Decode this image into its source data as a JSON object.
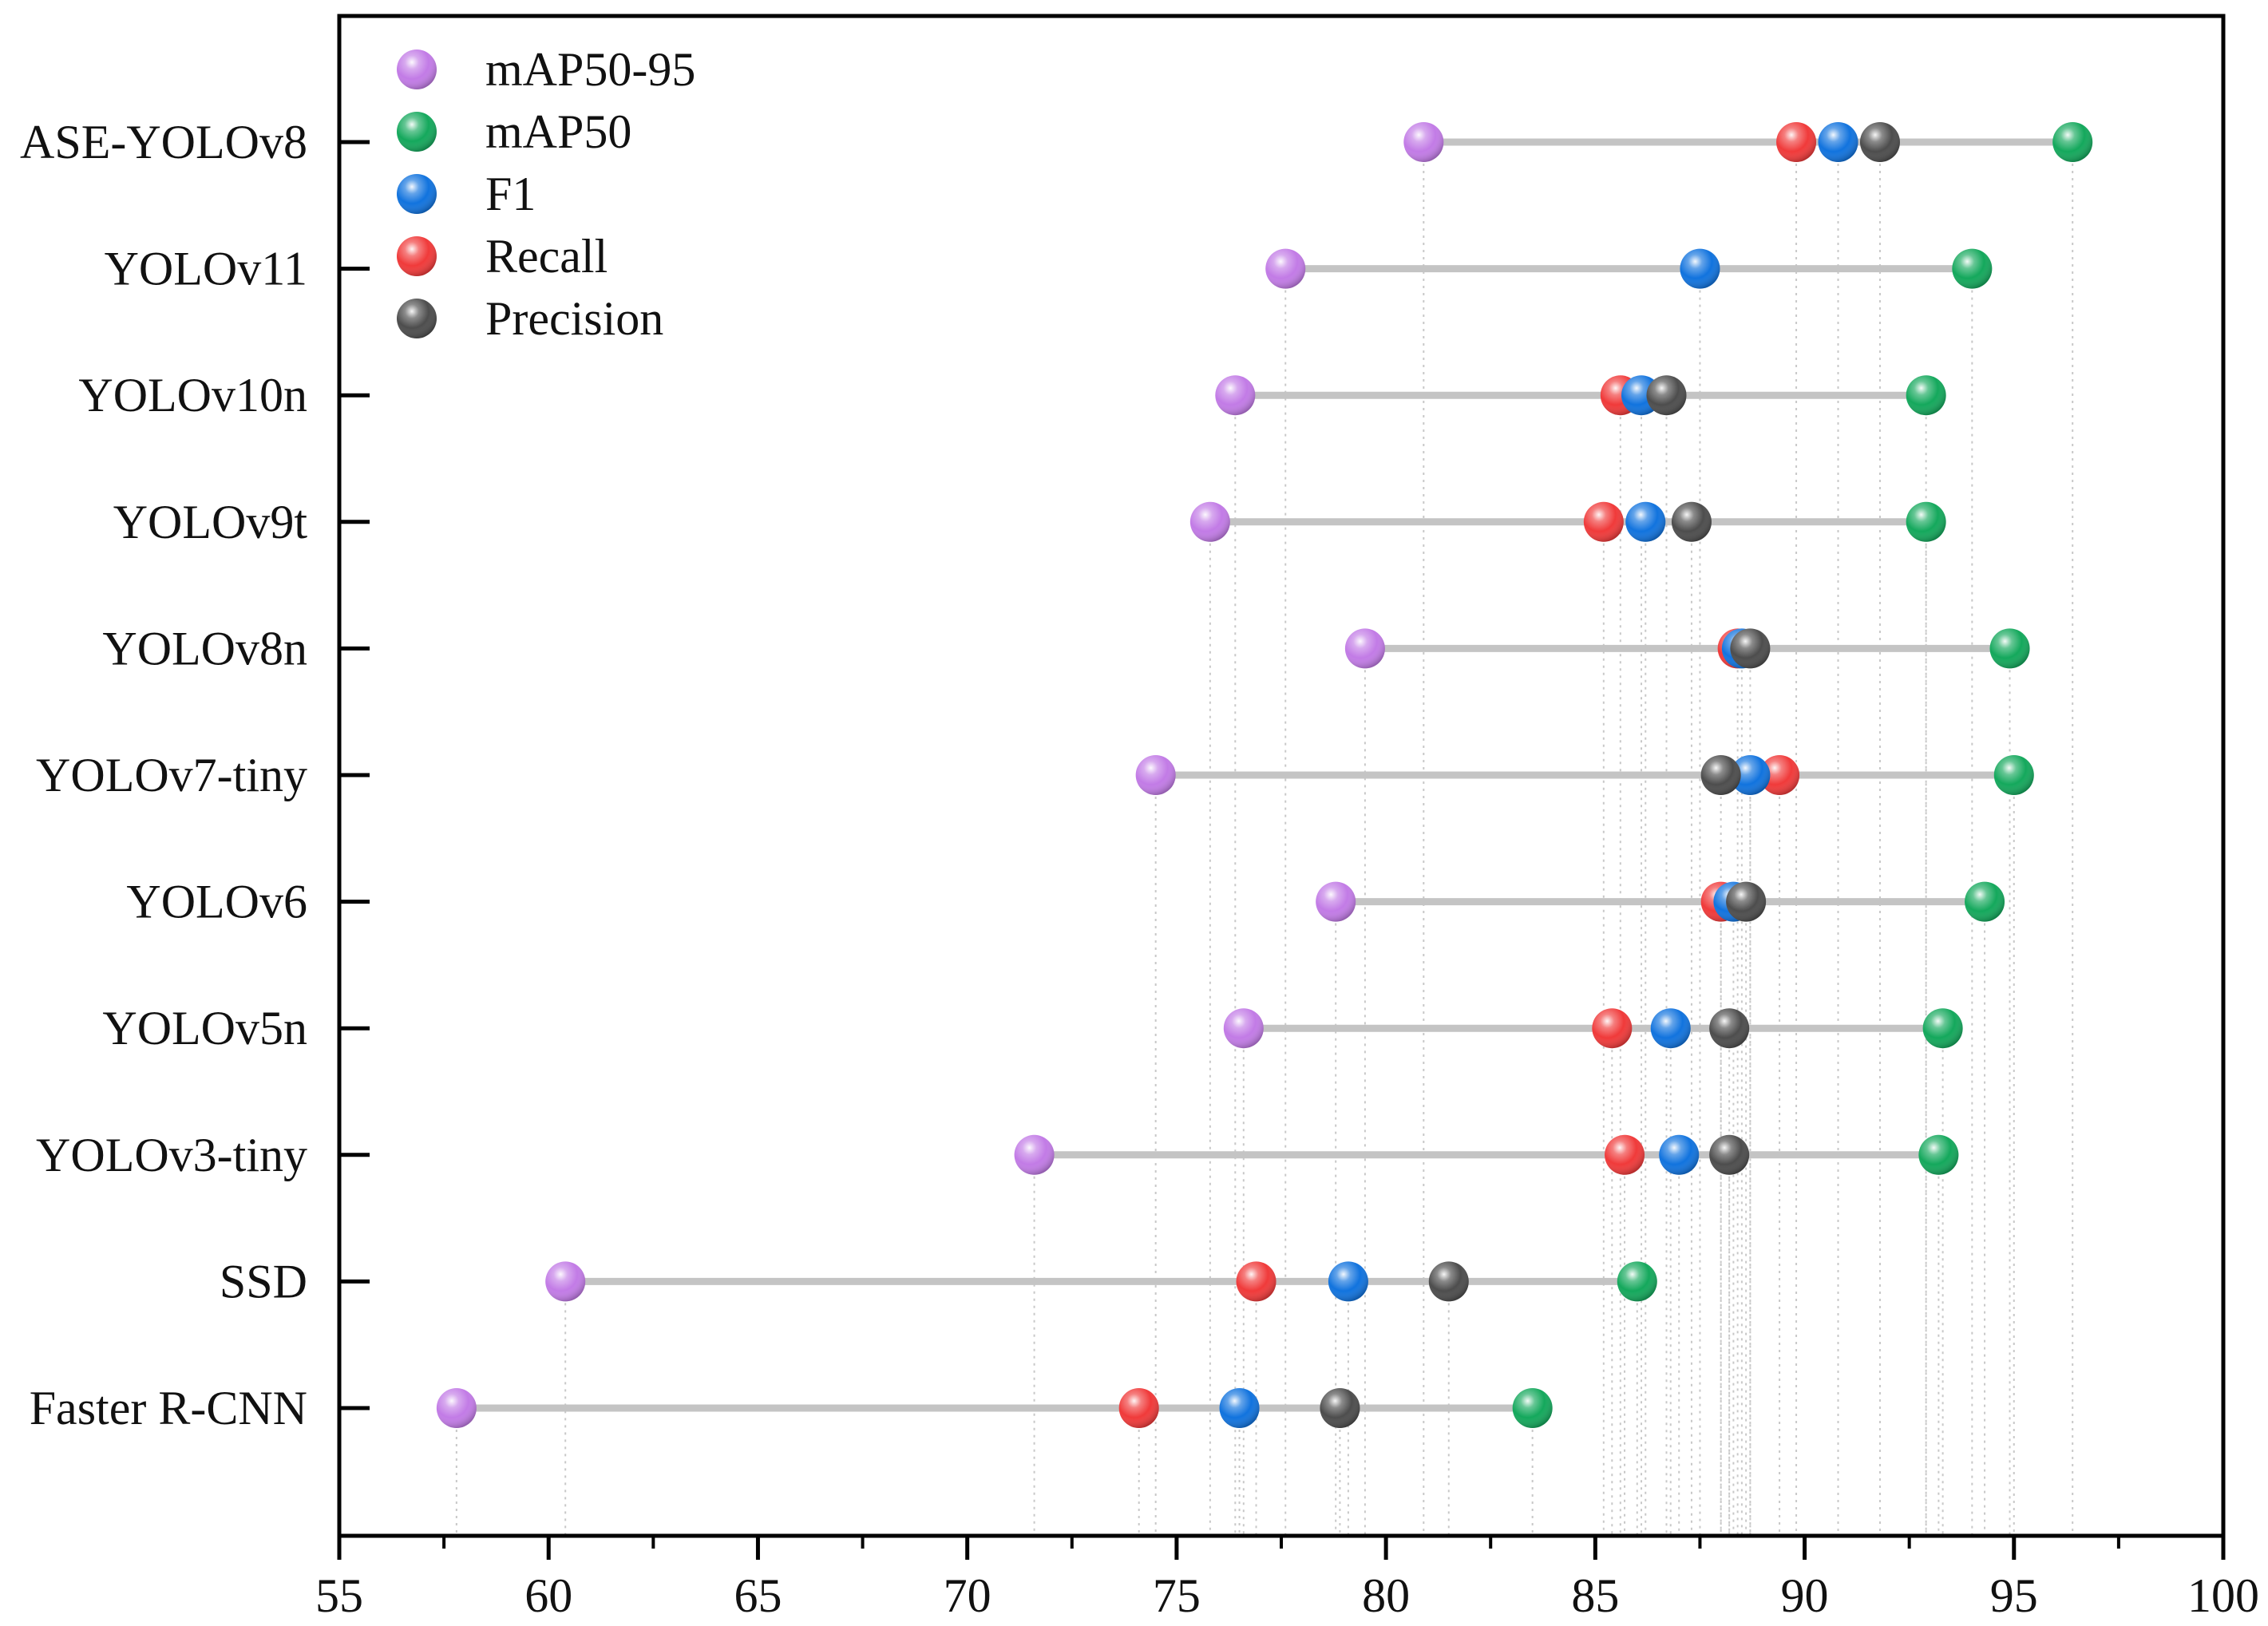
{
  "chart_data": {
    "type": "dumbbell",
    "title": "",
    "xlabel": "",
    "ylabel": "",
    "xlim": [
      55,
      100
    ],
    "xticks": [
      55,
      60,
      65,
      70,
      75,
      80,
      85,
      90,
      95,
      100
    ],
    "xtick_labels": [
      "55",
      "60",
      "65",
      "70",
      "75",
      "80",
      "85",
      "90",
      "95",
      "100"
    ],
    "categories": [
      "ASE-YOLOv8",
      "YOLOv11",
      "YOLOv10n",
      "YOLOv9t",
      "YOLOv8n",
      "YOLOv7-tiny",
      "YOLOv6",
      "YOLOv5n",
      "YOLOv3-tiny",
      "SSD",
      "Faster R-CNN"
    ],
    "series": [
      {
        "name": "mAP50-95",
        "color": "#c27be6",
        "values": [
          80.9,
          77.6,
          76.4,
          75.8,
          79.5,
          74.5,
          78.8,
          76.6,
          71.6,
          60.4,
          57.8
        ]
      },
      {
        "name": "mAP50",
        "color": "#14a85c",
        "values": [
          96.4,
          94.0,
          92.9,
          92.9,
          94.9,
          95.0,
          94.3,
          93.3,
          93.2,
          86.0,
          83.5
        ]
      },
      {
        "name": "F1",
        "color": "#1173de",
        "values": [
          90.8,
          87.5,
          86.1,
          86.2,
          88.5,
          88.7,
          88.3,
          86.8,
          87.0,
          79.1,
          76.5
        ]
      },
      {
        "name": "Recall",
        "color": "#f03a3a",
        "values": [
          89.8,
          null,
          85.6,
          85.2,
          88.4,
          89.4,
          88.0,
          85.4,
          85.7,
          76.9,
          74.1
        ]
      },
      {
        "name": "Precision",
        "color": "#4d4d4d",
        "values": [
          91.8,
          null,
          86.7,
          87.3,
          88.7,
          88.0,
          88.6,
          88.2,
          88.2,
          81.5,
          78.9
        ]
      }
    ],
    "legend_position": "top-left",
    "grid": false
  }
}
